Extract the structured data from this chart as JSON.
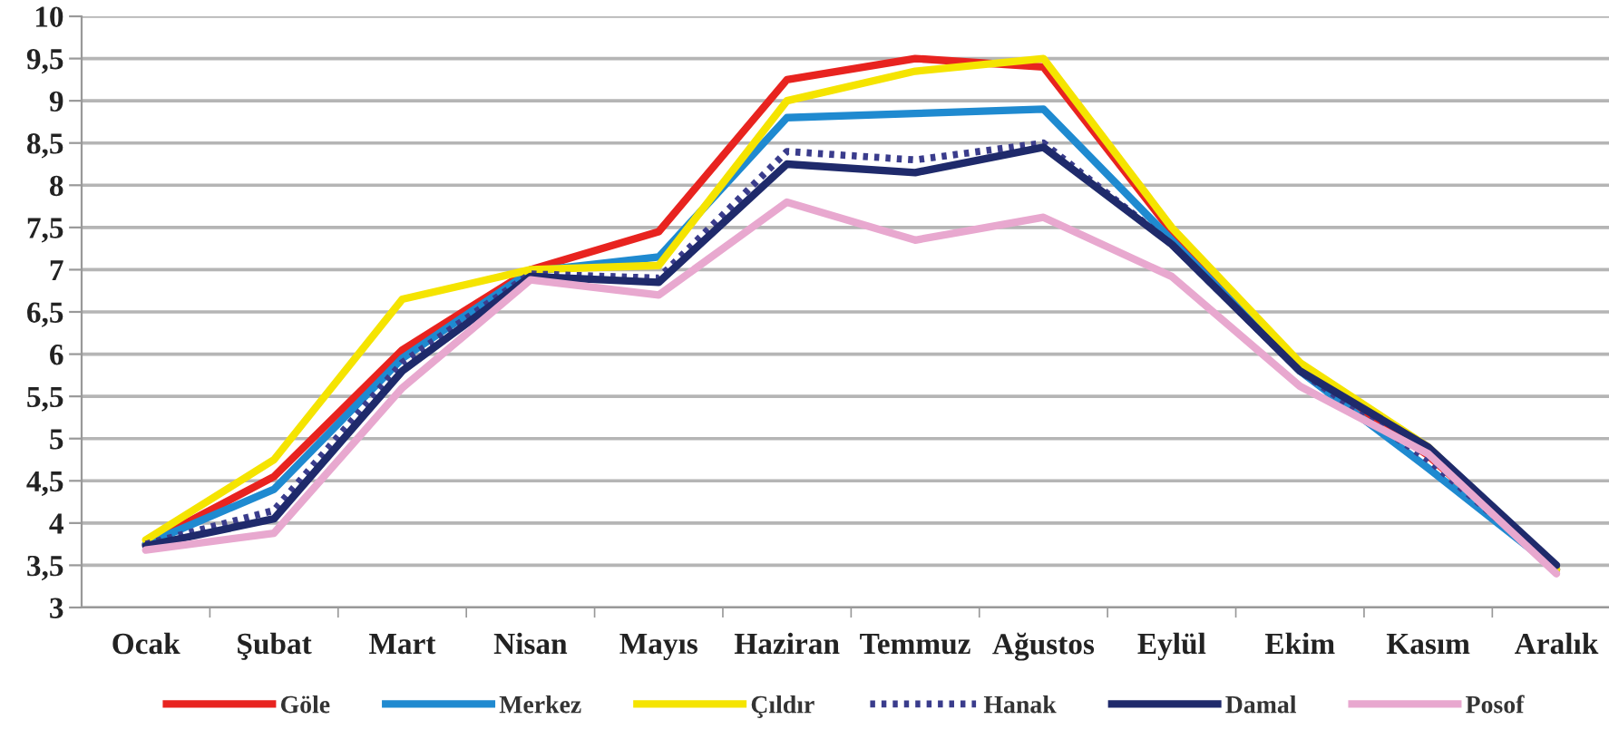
{
  "chart_data": {
    "type": "line",
    "categories": [
      "Ocak",
      "Şubat",
      "Mart",
      "Nisan",
      "Mayıs",
      "Haziran",
      "Temmuz",
      "Ağustos",
      "Eylül",
      "Ekim",
      "Kasım",
      "Aralık"
    ],
    "series": [
      {
        "name": "Göle",
        "color": "#e8231f",
        "values": [
          3.75,
          4.55,
          6.05,
          7.0,
          7.45,
          9.25,
          9.5,
          9.4,
          7.45,
          5.85,
          4.8,
          3.45
        ]
      },
      {
        "name": "Merkez",
        "color": "#1f8ad0",
        "values": [
          3.75,
          4.4,
          5.95,
          6.98,
          7.15,
          8.8,
          8.85,
          8.9,
          7.35,
          5.8,
          4.65,
          3.45
        ]
      },
      {
        "name": "Çıldır",
        "color": "#f5e400",
        "values": [
          3.8,
          4.75,
          6.65,
          7.0,
          7.05,
          9.0,
          9.35,
          9.5,
          7.5,
          5.9,
          4.9,
          3.45
        ]
      },
      {
        "name": "Hanak",
        "color": "#3a3c8c",
        "line_style": "dotted",
        "values": [
          3.75,
          4.15,
          5.9,
          6.95,
          6.9,
          8.4,
          8.3,
          8.5,
          7.3,
          5.8,
          4.75,
          3.45
        ]
      },
      {
        "name": "Damal",
        "color": "#1f2a6b",
        "values": [
          3.73,
          4.05,
          5.8,
          6.92,
          6.85,
          8.25,
          8.15,
          8.45,
          7.3,
          5.8,
          4.9,
          3.5
        ]
      },
      {
        "name": "Posof",
        "color": "#e8a8cf",
        "values": [
          3.68,
          3.88,
          5.6,
          6.88,
          6.7,
          7.8,
          7.35,
          7.62,
          6.92,
          5.62,
          4.82,
          3.4
        ]
      }
    ],
    "ylim": [
      3,
      10
    ],
    "yticks": [
      3,
      {
        "value": 3.5,
        "label": "3,5"
      },
      4,
      {
        "value": 4.5,
        "label": "4,5"
      },
      5,
      {
        "value": 5.5,
        "label": "5,5"
      },
      6,
      {
        "value": 6.5,
        "label": "6,5"
      },
      7,
      {
        "value": 7.5,
        "label": "7,5"
      },
      8,
      {
        "value": 8.5,
        "label": "8,5"
      },
      9,
      {
        "value": 9.5,
        "label": "9,5"
      },
      10
    ],
    "grid": "y",
    "legend": "bottom",
    "marker": "none",
    "line_style": "solid"
  }
}
